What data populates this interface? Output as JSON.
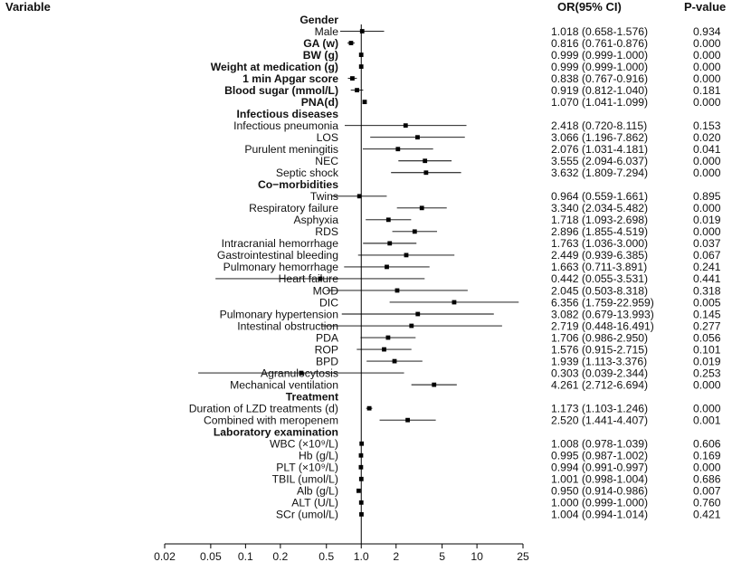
{
  "chart_data": {
    "type": "forest",
    "headers": {
      "variable": "Variable",
      "or_ci": "OR(95% CI)",
      "p_value": "P-value"
    },
    "x_scale": "log",
    "xlim": [
      0.02,
      25
    ],
    "reference_line": 1.0,
    "x_ticks": [
      "0.02",
      "0.05",
      "0.1",
      "0.2",
      "0.5",
      "1.0",
      "2",
      "5",
      "10",
      "25"
    ],
    "rows": [
      {
        "label": "Gender",
        "header": true
      },
      {
        "label": "Male",
        "or": 1.018,
        "lo": 0.658,
        "hi": 1.576,
        "ci_text": "1.018 (0.658-1.576)",
        "p": "0.934"
      },
      {
        "label": "GA (w)",
        "bold": true,
        "or": 0.816,
        "lo": 0.761,
        "hi": 0.876,
        "ci_text": "0.816 (0.761-0.876)",
        "p": "0.000"
      },
      {
        "label": "BW (g)",
        "bold": true,
        "or": 0.999,
        "lo": 0.999,
        "hi": 1.0,
        "ci_text": "0.999 (0.999-1.000)",
        "p": "0.000"
      },
      {
        "label": "Weight at medication (g)",
        "bold": true,
        "or": 0.999,
        "lo": 0.999,
        "hi": 1.0,
        "ci_text": "0.999 (0.999-1.000)",
        "p": "0.000"
      },
      {
        "label": "1 min Apgar score",
        "bold": true,
        "or": 0.838,
        "lo": 0.767,
        "hi": 0.916,
        "ci_text": "0.838 (0.767-0.916)",
        "p": "0.000"
      },
      {
        "label": "Blood sugar (mmol/L)",
        "bold": true,
        "or": 0.919,
        "lo": 0.812,
        "hi": 1.04,
        "ci_text": "0.919 (0.812-1.040)",
        "p": "0.181"
      },
      {
        "label": "PNA(d)",
        "bold": true,
        "or": 1.07,
        "lo": 1.041,
        "hi": 1.099,
        "ci_text": "1.070 (1.041-1.099)",
        "p": "0.000"
      },
      {
        "label": "Infectious diseases",
        "header": true
      },
      {
        "label": "Infectious pneumonia",
        "or": 2.418,
        "lo": 0.72,
        "hi": 8.115,
        "ci_text": "2.418 (0.720-8.115)",
        "p": "0.153"
      },
      {
        "label": "LOS",
        "or": 3.066,
        "lo": 1.196,
        "hi": 7.862,
        "ci_text": "3.066 (1.196-7.862)",
        "p": "0.020"
      },
      {
        "label": "Purulent meningitis",
        "or": 2.076,
        "lo": 1.031,
        "hi": 4.181,
        "ci_text": "2.076 (1.031-4.181)",
        "p": "0.041"
      },
      {
        "label": "NEC",
        "or": 3.555,
        "lo": 2.094,
        "hi": 6.037,
        "ci_text": "3.555 (2.094-6.037)",
        "p": "0.000"
      },
      {
        "label": "Septic shock",
        "or": 3.632,
        "lo": 1.809,
        "hi": 7.294,
        "ci_text": "3.632 (1.809-7.294)",
        "p": "0.000"
      },
      {
        "label": "Co−morbidities",
        "header": true
      },
      {
        "label": "Twins",
        "or": 0.964,
        "lo": 0.559,
        "hi": 1.661,
        "ci_text": "0.964 (0.559-1.661)",
        "p": "0.895"
      },
      {
        "label": "Respiratory failure",
        "or": 3.34,
        "lo": 2.034,
        "hi": 5.482,
        "ci_text": "3.340 (2.034-5.482)",
        "p": "0.000"
      },
      {
        "label": "Asphyxia",
        "or": 1.718,
        "lo": 1.093,
        "hi": 2.698,
        "ci_text": "1.718 (1.093-2.698)",
        "p": "0.019"
      },
      {
        "label": "RDS",
        "or": 2.896,
        "lo": 1.855,
        "hi": 4.519,
        "ci_text": "2.896 (1.855-4.519)",
        "p": "0.000"
      },
      {
        "label": "Intracranial hemorrhage",
        "or": 1.763,
        "lo": 1.036,
        "hi": 3.0,
        "ci_text": "1.763 (1.036-3.000)",
        "p": "0.037"
      },
      {
        "label": "Gastrointestinal bleeding",
        "or": 2.449,
        "lo": 0.939,
        "hi": 6.385,
        "ci_text": "2.449 (0.939-6.385)",
        "p": "0.067"
      },
      {
        "label": "Pulmonary hemorrhage",
        "or": 1.663,
        "lo": 0.711,
        "hi": 3.891,
        "ci_text": "1.663 (0.711-3.891)",
        "p": "0.241"
      },
      {
        "label": "Heart failure",
        "or": 0.442,
        "lo": 0.055,
        "hi": 3.531,
        "ci_text": "0.442 (0.055-3.531)",
        "p": "0.441"
      },
      {
        "label": "MOD",
        "or": 2.045,
        "lo": 0.503,
        "hi": 8.318,
        "ci_text": "2.045 (0.503-8.318)",
        "p": "0.318"
      },
      {
        "label": "DIC",
        "or": 6.356,
        "lo": 1.759,
        "hi": 22.959,
        "ci_text": "6.356 (1.759-22.959)",
        "p": "0.005"
      },
      {
        "label": "Pulmonary hypertension",
        "or": 3.082,
        "lo": 0.679,
        "hi": 13.993,
        "ci_text": "3.082 (0.679-13.993)",
        "p": "0.145"
      },
      {
        "label": "Intestinal obstruction",
        "or": 2.719,
        "lo": 0.448,
        "hi": 16.491,
        "ci_text": "2.719 (0.448-16.491)",
        "p": "0.277"
      },
      {
        "label": "PDA",
        "or": 1.706,
        "lo": 0.986,
        "hi": 2.95,
        "ci_text": "1.706 (0.986-2.950)",
        "p": "0.056"
      },
      {
        "label": "ROP",
        "or": 1.576,
        "lo": 0.915,
        "hi": 2.715,
        "ci_text": "1.576 (0.915-2.715)",
        "p": "0.101"
      },
      {
        "label": "BPD",
        "or": 1.939,
        "lo": 1.113,
        "hi": 3.376,
        "ci_text": "1.939 (1.113-3.376)",
        "p": "0.019"
      },
      {
        "label": "Agranulocytosis",
        "or": 0.303,
        "lo": 0.039,
        "hi": 2.344,
        "ci_text": "0.303 (0.039-2.344)",
        "p": "0.253"
      },
      {
        "label": "Mechanical ventilation",
        "or": 4.261,
        "lo": 2.712,
        "hi": 6.694,
        "ci_text": "4.261 (2.712-6.694)",
        "p": "0.000"
      },
      {
        "label": "Treatment",
        "header": true
      },
      {
        "label": "Duration of LZD treatments (d)",
        "or": 1.173,
        "lo": 1.103,
        "hi": 1.246,
        "ci_text": "1.173 (1.103-1.246)",
        "p": "0.000"
      },
      {
        "label": "Combined with meropenem",
        "or": 2.52,
        "lo": 1.441,
        "hi": 4.407,
        "ci_text": "2.520 (1.441-4.407)",
        "p": "0.001"
      },
      {
        "label": "Laboratory examination",
        "header": true
      },
      {
        "label": "WBC (×10⁹/L)",
        "or": 1.008,
        "lo": 0.978,
        "hi": 1.039,
        "ci_text": "1.008 (0.978-1.039)",
        "p": "0.606"
      },
      {
        "label": "Hb (g/L)",
        "or": 0.995,
        "lo": 0.987,
        "hi": 1.002,
        "ci_text": "0.995 (0.987-1.002)",
        "p": "0.169"
      },
      {
        "label": "PLT (×10⁹/L)",
        "or": 0.994,
        "lo": 0.991,
        "hi": 0.997,
        "ci_text": "0.994 (0.991-0.997)",
        "p": "0.000"
      },
      {
        "label": "TBIL (umol/L)",
        "or": 1.001,
        "lo": 0.998,
        "hi": 1.004,
        "ci_text": "1.001 (0.998-1.004)",
        "p": "0.686"
      },
      {
        "label": "Alb (g/L)",
        "or": 0.95,
        "lo": 0.914,
        "hi": 0.986,
        "ci_text": "0.950 (0.914-0.986)",
        "p": "0.007"
      },
      {
        "label": "ALT (U/L)",
        "or": 1.0,
        "lo": 0.999,
        "hi": 1.0,
        "ci_text": "1.000 (0.999-1.000)",
        "p": "0.760"
      },
      {
        "label": "SCr (umol/L)",
        "or": 1.004,
        "lo": 0.994,
        "hi": 1.014,
        "ci_text": "1.004 (0.994-1.014)",
        "p": "0.421"
      }
    ]
  }
}
